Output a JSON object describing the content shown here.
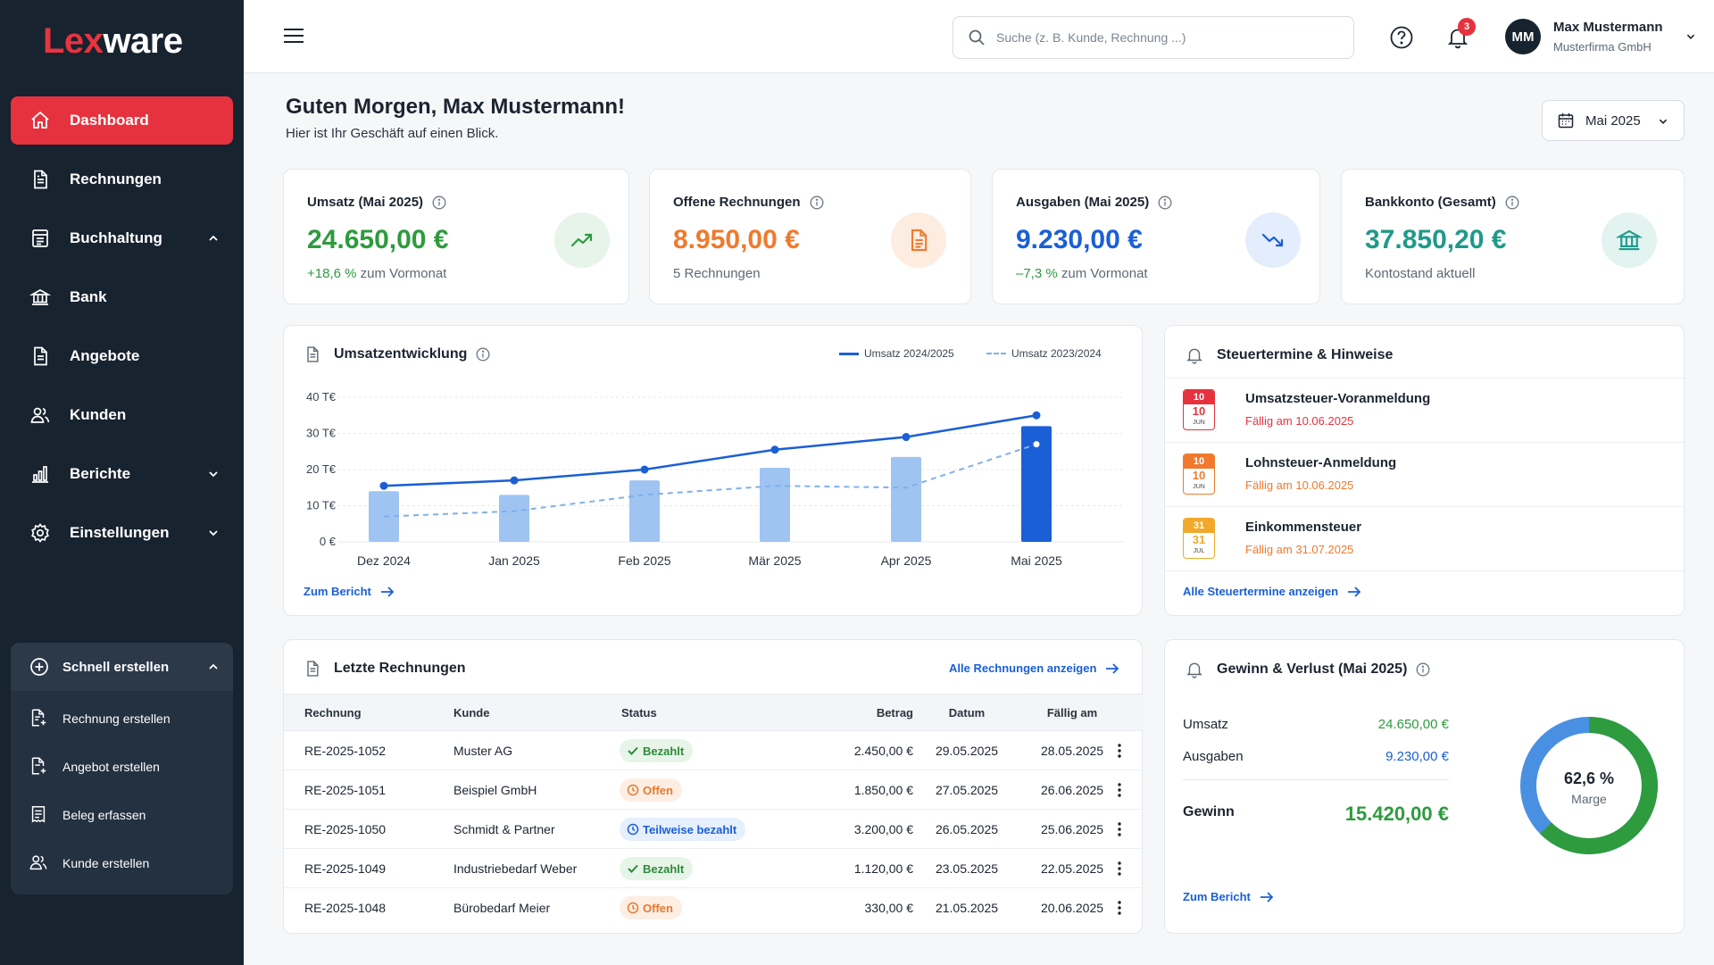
{
  "brand": {
    "logo_part1": "Lex",
    "logo_part2": "ware"
  },
  "sidebar": {
    "items": [
      {
        "label": "Dashboard",
        "icon": "home-icon",
        "active": true
      },
      {
        "label": "Rechnungen",
        "icon": "invoice-icon"
      },
      {
        "label": "Buchhaltung",
        "icon": "ledger-icon",
        "expanded": true
      },
      {
        "label": "Bank",
        "icon": "bank-icon"
      },
      {
        "label": "Angebote",
        "icon": "offer-icon"
      },
      {
        "label": "Kunden",
        "icon": "customers-icon"
      },
      {
        "label": "Berichte",
        "icon": "reports-icon",
        "expanded": false
      },
      {
        "label": "Einstellungen",
        "icon": "settings-icon",
        "expanded": false
      }
    ],
    "quick": {
      "title": "Schnell erstellen",
      "items": [
        {
          "label": "Rechnung erstellen",
          "icon": "invoice-add-icon"
        },
        {
          "label": "Angebot erstellen",
          "icon": "offer-add-icon"
        },
        {
          "label": "Beleg erfassen",
          "icon": "receipt-icon"
        },
        {
          "label": "Kunde erstellen",
          "icon": "customer-add-icon"
        }
      ]
    }
  },
  "topbar": {
    "search_placeholder": "Suche (z. B. Kunde, Rechnung ...)",
    "notifications_count": "3",
    "user_initials": "MM",
    "user_name": "Max Mustermann",
    "user_company": "Musterfirma GmbH"
  },
  "header": {
    "greeting": "Guten Morgen, Max Mustermann!",
    "subtitle": "Hier ist Ihr Geschäft auf einen Blick.",
    "month": "Mai 2025"
  },
  "kpis": {
    "revenue": {
      "title": "Umsatz (Mai 2025)",
      "value": "24.650,00 €",
      "change": "+18,6 %",
      "change_suffix": " zum Vormonat",
      "color": "#2e9b3e"
    },
    "open": {
      "title": "Offene Rechnungen",
      "value": "8.950,00 €",
      "sub": "5 Rechnungen",
      "color": "#ef7a2e"
    },
    "expenses": {
      "title": "Ausgaben (Mai 2025)",
      "value": "9.230,00 €",
      "change": "–7,3 %",
      "change_suffix": " zum Vormonat",
      "color": "#1a5fd6"
    },
    "bank": {
      "title": "Bankkonto (Gesamt)",
      "value": "37.850,20 €",
      "sub": "Kontostand aktuell",
      "color": "#1f9a8a"
    }
  },
  "revenue_chart": {
    "title": "Umsatzentwicklung",
    "link": "Zum Bericht",
    "legend_current": "Umsatz 2024/2025",
    "legend_previous": "Umsatz 2023/2024"
  },
  "chart_data": {
    "type": "bar",
    "categories": [
      "Dez 2024",
      "Jan 2025",
      "Feb 2025",
      "Mär 2025",
      "Apr 2025",
      "Mai 2025"
    ],
    "y_ticks": [
      "0 €",
      "10 T€",
      "20 T€",
      "30 T€",
      "40 T€"
    ],
    "ylim": [
      0,
      40000
    ],
    "series": [
      {
        "name": "",
        "type": "bar",
        "values": [
          14000,
          13000,
          17000,
          20500,
          23500,
          32000
        ],
        "highlight_last": true
      },
      {
        "name": "Umsatz 2024/2025",
        "type": "line",
        "values": [
          15500,
          17000,
          20000,
          25500,
          29000,
          35000
        ]
      },
      {
        "name": "Umsatz 2023/2024",
        "type": "dashed-line",
        "values": [
          7000,
          8500,
          13000,
          15500,
          15000,
          27000
        ]
      }
    ],
    "colors": {
      "bar": "#9fc4f2",
      "bar_highlight": "#1a5fd6",
      "line": "#1a5fd6",
      "dashed": "#7fb0ea"
    }
  },
  "tax": {
    "title": "Steuertermine & Hinweise",
    "link": "Alle Steuertermine anzeigen",
    "items": [
      {
        "day": "10",
        "month": "JUN",
        "name": "Umsatzsteuer-Voranmeldung",
        "due": "Fällig am 10.06.2025",
        "color": "#e6323e"
      },
      {
        "day": "10",
        "month": "JUN",
        "name": "Lohnsteuer-Anmeldung",
        "due": "Fällig am 10.06.2025",
        "color": "#ef7a2e"
      },
      {
        "day": "31",
        "month": "JUL",
        "name": "Einkommensteuer",
        "due": "Fällig am 31.07.2025",
        "color": "#f0a92b"
      }
    ]
  },
  "invoices": {
    "title": "Letzte Rechnungen",
    "link": "Alle Rechnungen anzeigen",
    "columns": [
      "Rechnung",
      "Kunde",
      "Status",
      "Betrag",
      "Datum",
      "Fällig am"
    ],
    "rows": [
      {
        "id": "RE-2025-1052",
        "customer": "Muster AG",
        "status": "Bezahlt",
        "kind": "paid",
        "amount": "2.450,00 €",
        "date": "29.05.2025",
        "due": "28.05.2025"
      },
      {
        "id": "RE-2025-1051",
        "customer": "Beispiel GmbH",
        "status": "Offen",
        "kind": "open",
        "amount": "1.850,00 €",
        "date": "27.05.2025",
        "due": "26.06.2025"
      },
      {
        "id": "RE-2025-1050",
        "customer": "Schmidt & Partner",
        "status": "Teilweise bezahlt",
        "kind": "partial",
        "amount": "3.200,00 €",
        "date": "26.05.2025",
        "due": "25.06.2025"
      },
      {
        "id": "RE-2025-1049",
        "customer": "Industriebedarf Weber",
        "status": "Bezahlt",
        "kind": "paid",
        "amount": "1.120,00 €",
        "date": "23.05.2025",
        "due": "22.05.2025"
      },
      {
        "id": "RE-2025-1048",
        "customer": "Bürobedarf Meier",
        "status": "Offen",
        "kind": "open",
        "amount": "330,00 €",
        "date": "21.05.2025",
        "due": "20.06.2025"
      }
    ]
  },
  "pl": {
    "title": "Gewinn & Verlust (Mai 2025)",
    "revenue_label": "Umsatz",
    "revenue_value": "24.650,00 €",
    "expenses_label": "Ausgaben",
    "expenses_value": "9.230,00 €",
    "profit_label": "Gewinn",
    "profit_value": "15.420,00 €",
    "margin_value": "62,6 %",
    "margin_label": "Marge",
    "margin_fraction": 0.626,
    "link": "Zum Bericht",
    "colors": {
      "profit": "#2e9b3e",
      "expenses": "#4a90e2"
    }
  }
}
